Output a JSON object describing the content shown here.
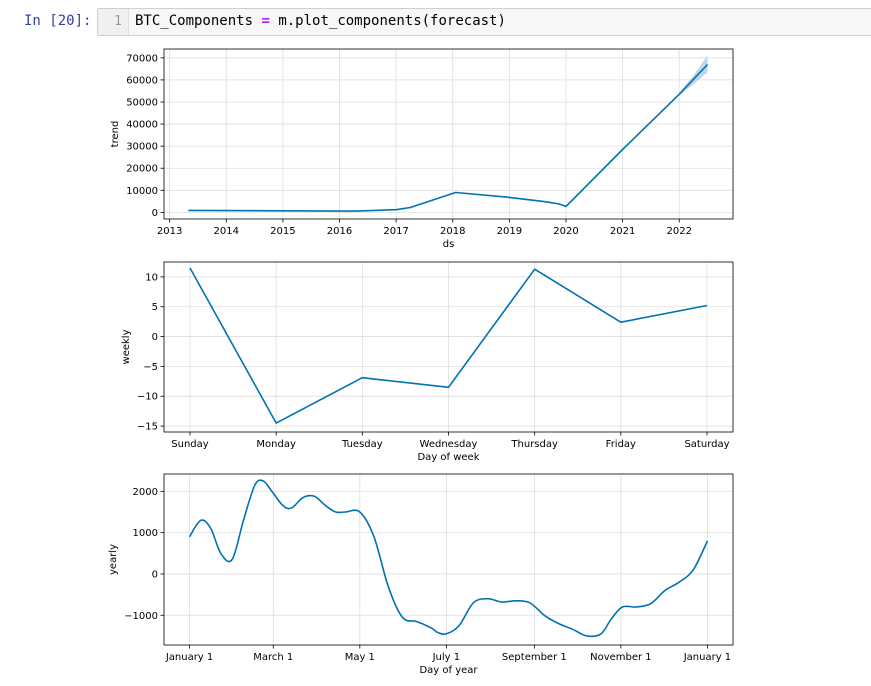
{
  "cell": {
    "prompt": "In [20]:",
    "line_number": "1",
    "code": {
      "var": "BTC_Components",
      "op": "=",
      "call": "m.plot_components(forecast)"
    }
  },
  "colors": {
    "line": "#0072b2",
    "band": "#a6cae4",
    "grid": "#dddddd",
    "prompt": "#303f9f"
  },
  "chart_data": [
    {
      "type": "line",
      "xlabel": "ds",
      "ylabel": "trend",
      "x_ticks": [
        "2013",
        "2014",
        "2015",
        "2016",
        "2017",
        "2018",
        "2019",
        "2020",
        "2021",
        "2022"
      ],
      "y_ticks": [
        "0",
        "10000",
        "20000",
        "30000",
        "40000",
        "50000",
        "60000",
        "70000"
      ],
      "xlim": [
        2012.9,
        2022.95
      ],
      "ylim": [
        -3000,
        74000
      ],
      "grid": true,
      "series": [
        {
          "x": [
            2013.33,
            2014.0,
            2015.0,
            2016.0,
            2016.3,
            2017.0,
            2017.25,
            2018.05,
            2019.0,
            2019.65,
            2019.88,
            2020.0,
            2021.0,
            2022.0,
            2022.5
          ],
          "y": [
            900,
            800,
            700,
            600,
            600,
            1200,
            2200,
            9000,
            6800,
            4800,
            3800,
            2700,
            28500,
            53500,
            67000
          ]
        }
      ],
      "uncertainty": {
        "x": [
          2022.0,
          2022.25,
          2022.5
        ],
        "upper": [
          54200,
          62000,
          71000
        ],
        "lower": [
          53000,
          58000,
          63500
        ]
      }
    },
    {
      "type": "line",
      "xlabel": "Day of week",
      "ylabel": "weekly",
      "categories": [
        "Sunday",
        "Monday",
        "Tuesday",
        "Wednesday",
        "Thursday",
        "Friday",
        "Saturday"
      ],
      "values": [
        11.5,
        -14.5,
        -6.9,
        -8.5,
        11.3,
        2.4,
        5.2
      ],
      "y_ticks": [
        "10",
        "5",
        "0",
        "−5",
        "−10",
        "−15"
      ],
      "ylim": [
        -16,
        12.5
      ],
      "grid": true
    },
    {
      "type": "line",
      "xlabel": "Day of year",
      "ylabel": "yearly",
      "x_ticks": [
        "January 1",
        "March 1",
        "May 1",
        "July 1",
        "September 1",
        "November 1",
        "January 1"
      ],
      "y_ticks": [
        "2000",
        "1000",
        "0",
        "−1000"
      ],
      "xlim": [
        -18,
        383
      ],
      "ylim": [
        -1720,
        2420
      ],
      "grid": true,
      "series": [
        {
          "x": [
            0,
            8,
            15,
            22,
            30,
            38,
            46,
            52,
            58,
            66,
            72,
            80,
            88,
            96,
            103,
            110,
            120,
            130,
            140,
            150,
            160,
            170,
            175,
            181,
            190,
            200,
            210,
            220,
            230,
            240,
            250,
            260,
            270,
            280,
            290,
            297,
            305,
            315,
            325,
            335,
            345,
            355,
            365
          ],
          "y": [
            900,
            1300,
            1100,
            500,
            350,
            1300,
            2150,
            2250,
            2000,
            1650,
            1600,
            1850,
            1880,
            1650,
            1500,
            1500,
            1500,
            900,
            -300,
            -1050,
            -1150,
            -1300,
            -1420,
            -1450,
            -1250,
            -700,
            -600,
            -680,
            -650,
            -700,
            -1000,
            -1200,
            -1340,
            -1500,
            -1450,
            -1100,
            -800,
            -800,
            -720,
            -400,
            -200,
            100,
            800
          ]
        }
      ]
    }
  ]
}
